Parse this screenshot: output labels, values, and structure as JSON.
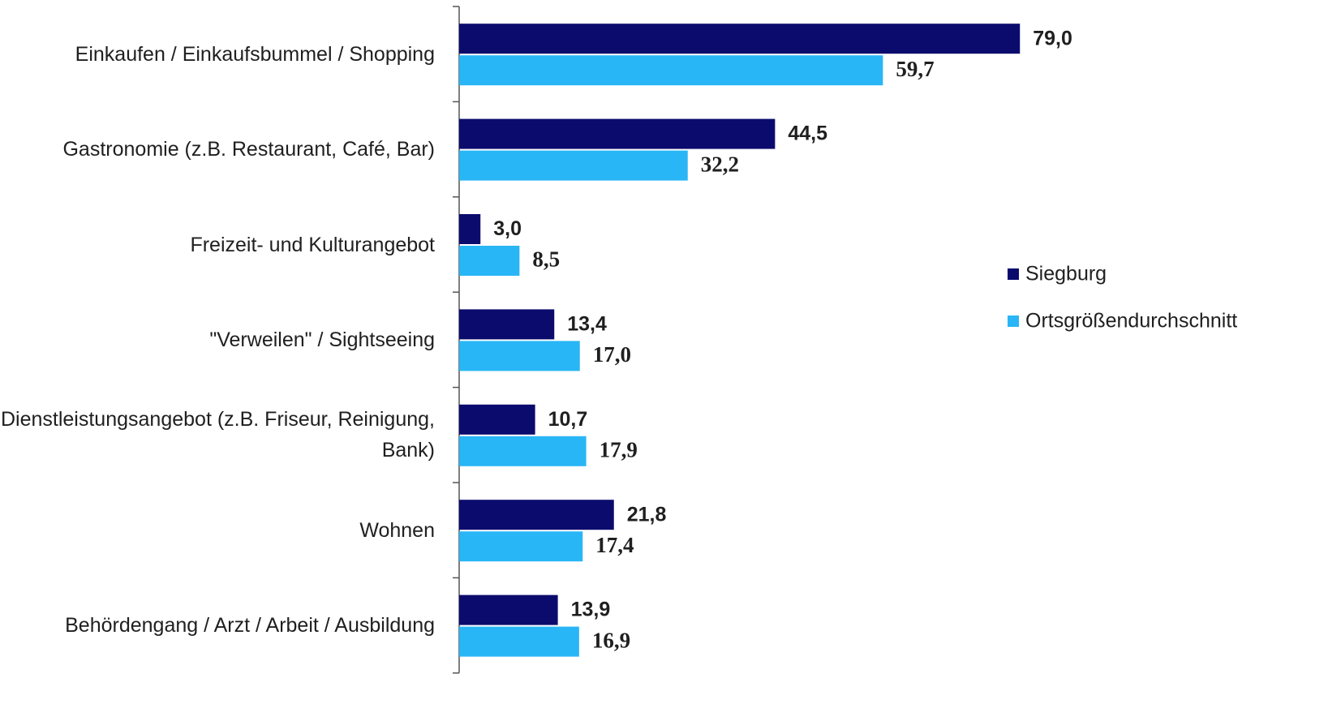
{
  "chart_data": {
    "type": "bar",
    "orientation": "horizontal",
    "categories": [
      "Einkaufen / Einkaufsbummel / Shopping",
      "Gastronomie (z.B. Restaurant, Café, Bar)",
      "Freizeit- und Kulturangebot",
      "\"Verweilen\" / Sightseeing",
      "Dienstleistungsangebot (z.B. Friseur, Reinigung, Bank)",
      "Wohnen",
      "Behördengang / Arzt / Arbeit / Ausbildung"
    ],
    "series": [
      {
        "name": "Siegburg",
        "color": "#0b0b6e",
        "values": [
          79.0,
          44.5,
          3.0,
          13.4,
          10.7,
          21.8,
          13.9
        ],
        "value_labels": [
          "79,0",
          "44,5",
          "3,0",
          "13,4",
          "10,7",
          "21,8",
          "13,9"
        ]
      },
      {
        "name": "Ortsgrößendurchschnitt",
        "color": "#29b6f6",
        "values": [
          59.7,
          32.2,
          8.5,
          17.0,
          17.9,
          17.4,
          16.9
        ],
        "value_labels": [
          "59,7",
          "32,2",
          "8,5",
          "17,0",
          "17,9",
          "17,4",
          "16,9"
        ]
      }
    ],
    "legend": "right"
  }
}
